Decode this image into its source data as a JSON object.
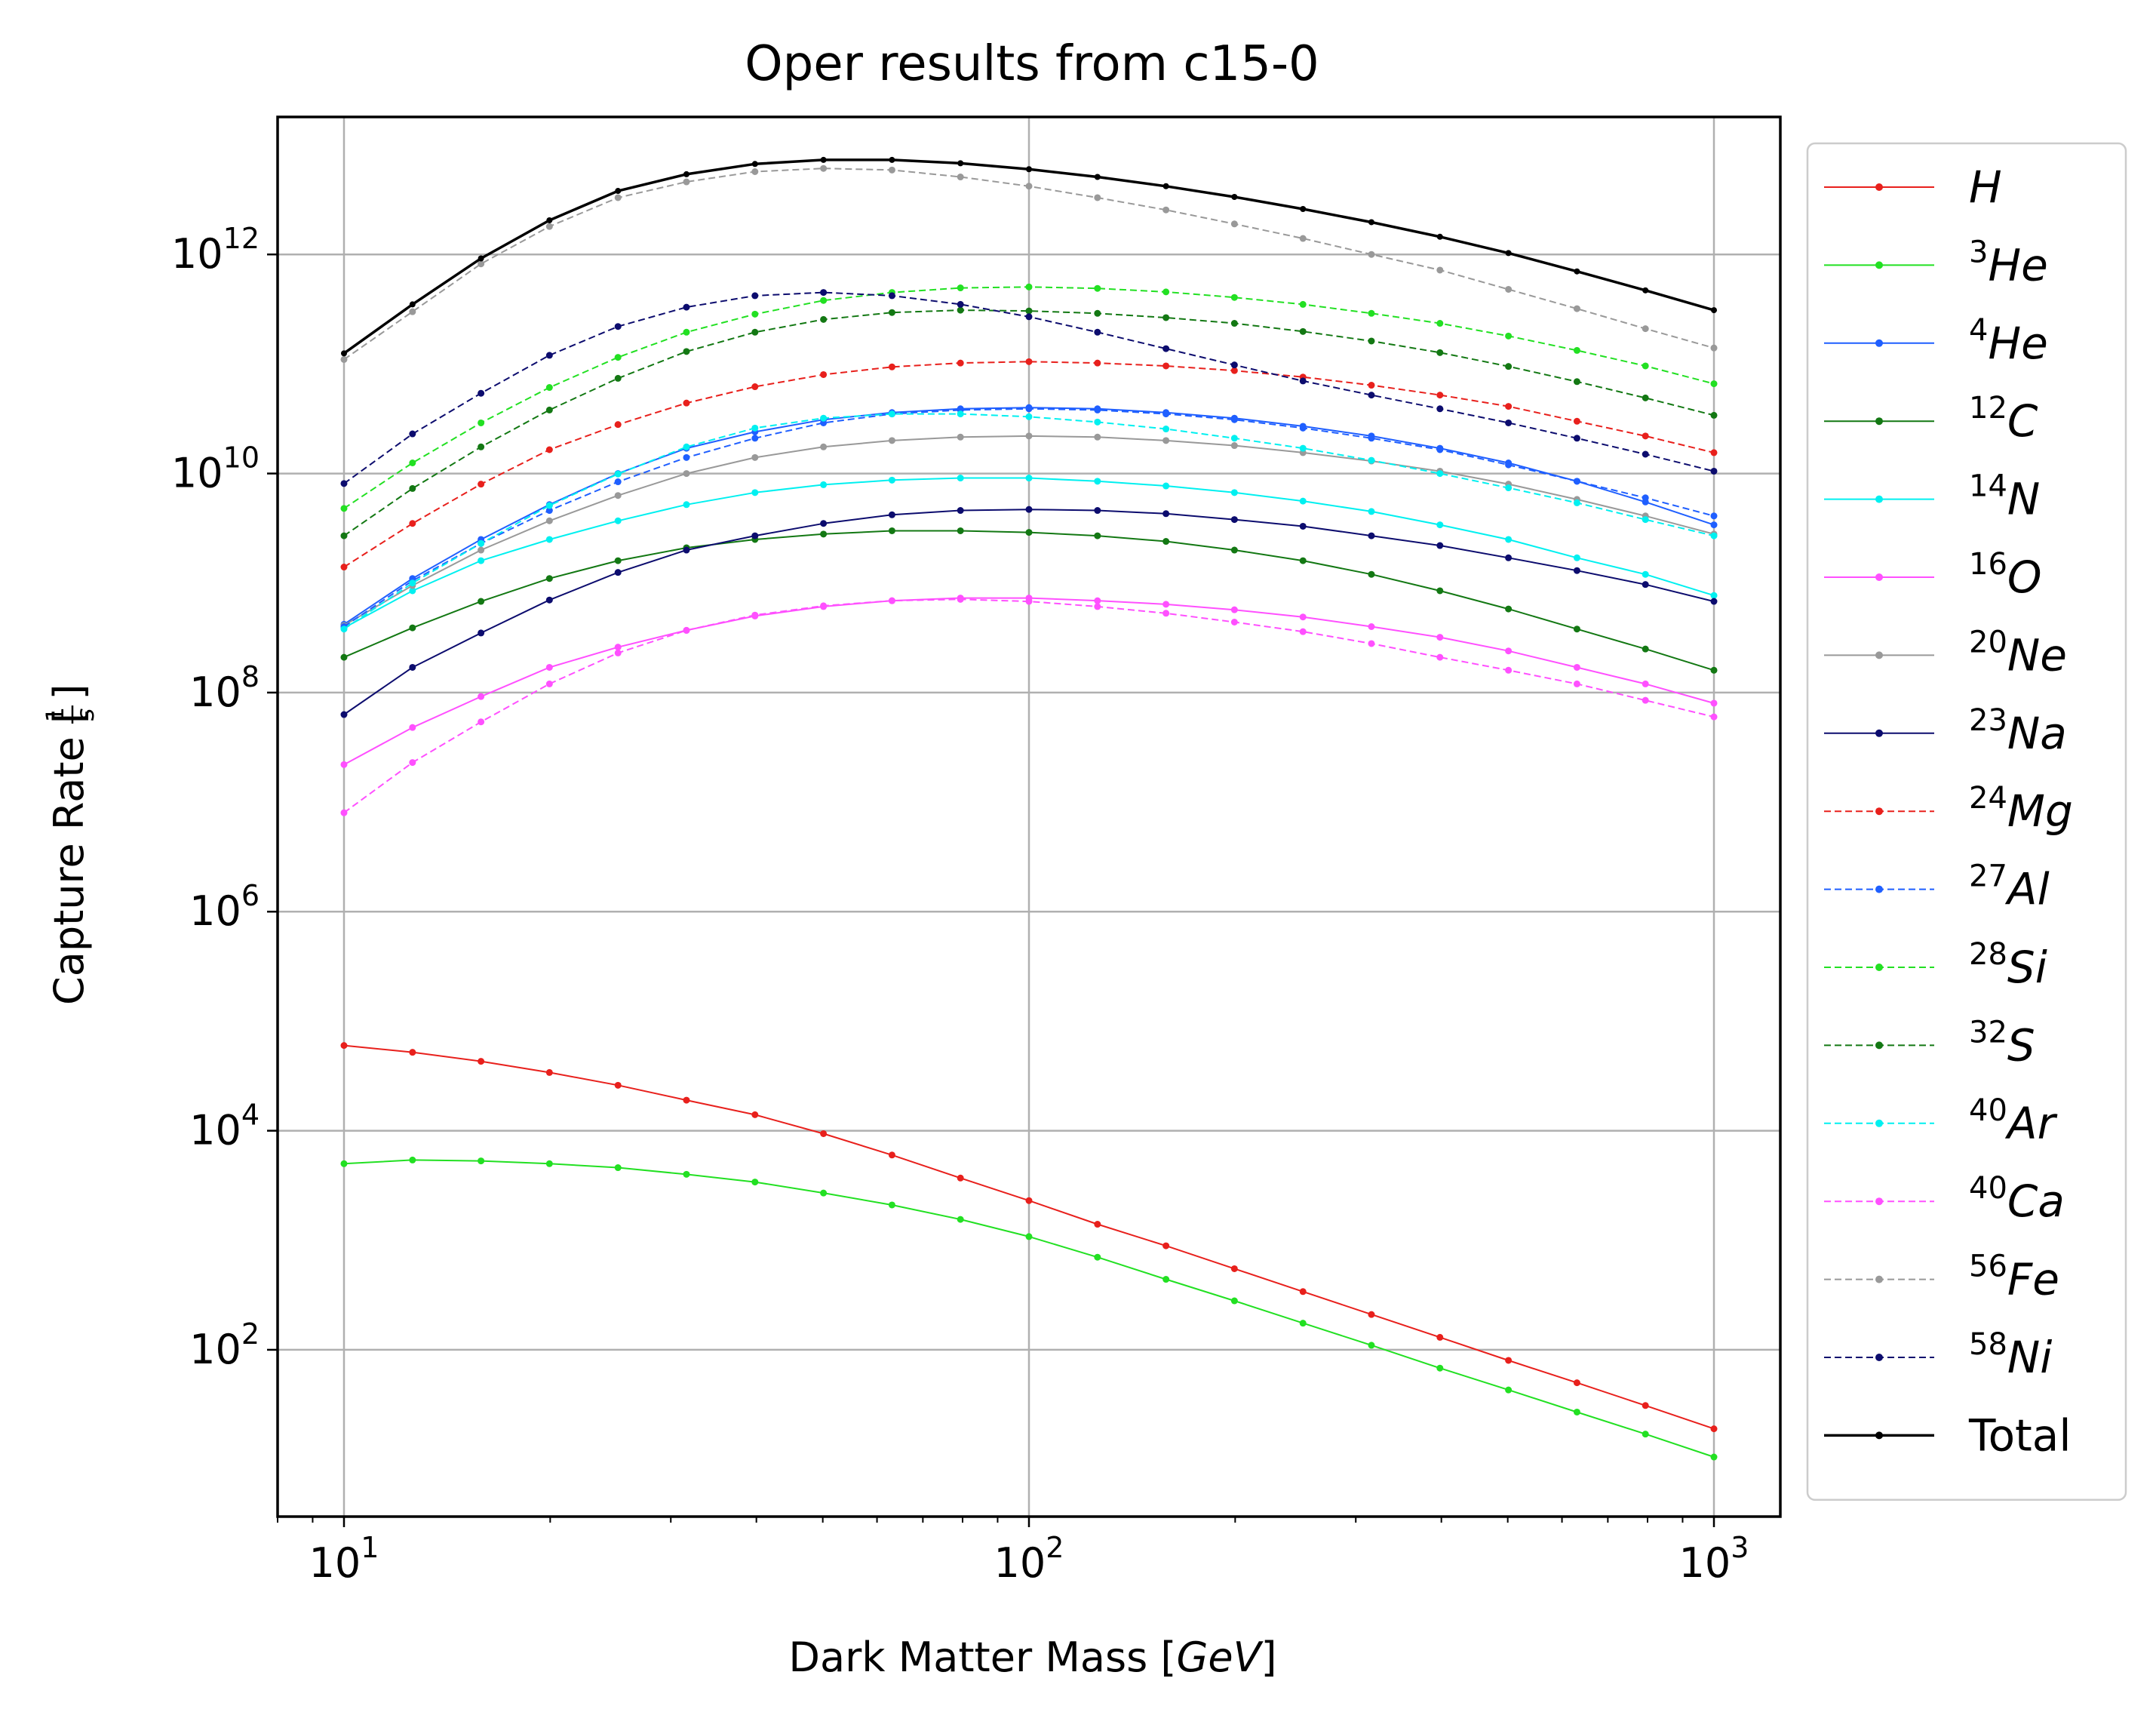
{
  "chart_data": {
    "type": "line",
    "title": "Oper results from c15-0",
    "xlabel": "Dark Matter Mass [GeV]",
    "ylabel": "Capture Rate [1/s]",
    "xscale": "log",
    "yscale": "log",
    "xlim": [
      8.0,
      1250.0
    ],
    "ylim": [
      3.0,
      18000000000000.0
    ],
    "grid": true,
    "legend_position": "right, outside plot",
    "x_ticks": [
      {
        "value": 10,
        "label": "10^1"
      },
      {
        "value": 100,
        "label": "10^2"
      },
      {
        "value": 1000,
        "label": "10^3"
      }
    ],
    "y_ticks": [
      {
        "value": 100,
        "label": "10^2"
      },
      {
        "value": 10000,
        "label": "10^4"
      },
      {
        "value": 1000000,
        "label": "10^6"
      },
      {
        "value": 100000000,
        "label": "10^8"
      },
      {
        "value": 10000000000,
        "label": "10^10"
      },
      {
        "value": 1000000000000,
        "label": "10^12"
      }
    ],
    "x": [
      10,
      12.59,
      15.85,
      19.95,
      25.12,
      31.62,
      39.81,
      50.12,
      63.1,
      79.43,
      100,
      125.9,
      158.5,
      199.5,
      251.2,
      316.2,
      398.1,
      501.2,
      631,
      794.3,
      1000
    ],
    "series": [
      {
        "name": "H",
        "iso": "",
        "el": "H",
        "color": "#e8201c",
        "style": "solid",
        "values": [
          60000,
          52000,
          43000,
          34000,
          26000,
          19000,
          14000,
          9400,
          6000,
          3700,
          2300,
          1400,
          890,
          550,
          340,
          210,
          130,
          80,
          50,
          31,
          19
        ]
      },
      {
        "name": "3He",
        "iso": "3",
        "el": "He",
        "color": "#22e022",
        "style": "solid",
        "values": [
          5000,
          5400,
          5300,
          5000,
          4600,
          4000,
          3400,
          2700,
          2100,
          1550,
          1080,
          700,
          440,
          280,
          175,
          110,
          68,
          43,
          27,
          17,
          10.5
        ]
      },
      {
        "name": "4He",
        "iso": "4",
        "el": "He",
        "color": "#1f5fff",
        "style": "solid",
        "values": [
          420000000,
          1100000000,
          2500000000,
          5200000000,
          10000000000.0,
          17000000000.0,
          24000000000.0,
          31000000000.0,
          36000000000.0,
          39000000000.0,
          40000000000.0,
          39000000000.0,
          36000000000.0,
          32000000000.0,
          27000000000.0,
          22000000000.0,
          17000000000.0,
          12500000000.0,
          8500000000.0,
          5500000000.0,
          3400000000.0
        ]
      },
      {
        "name": "12C",
        "iso": "12",
        "el": "C",
        "color": "#137813",
        "style": "solid",
        "values": [
          210000000,
          390000000,
          680000000,
          1100000000,
          1600000000,
          2100000000,
          2500000000,
          2800000000,
          3000000000,
          3000000000,
          2900000000,
          2700000000,
          2400000000,
          2000000000,
          1600000000,
          1200000000,
          850000000,
          580000000,
          380000000,
          250000000,
          160000000
        ]
      },
      {
        "name": "14N",
        "iso": "14",
        "el": "N",
        "color": "#00f0f0",
        "style": "solid",
        "values": [
          390000000,
          850000000,
          1600000000,
          2500000000,
          3700000000,
          5200000000,
          6700000000,
          7900000000,
          8700000000,
          9100000000,
          9100000000,
          8500000000,
          7700000000,
          6700000000,
          5600000000,
          4500000000,
          3400000000,
          2500000000,
          1700000000,
          1200000000,
          770000000
        ]
      },
      {
        "name": "16O",
        "iso": "16",
        "el": "O",
        "color": "#ff50ff",
        "style": "solid",
        "values": [
          22000000,
          48000000,
          92000000,
          170000000,
          260000000,
          370000000,
          500000000,
          610000000,
          690000000,
          730000000,
          730000000,
          690000000,
          640000000,
          570000000,
          490000000,
          400000000,
          320000000,
          240000000,
          170000000,
          120000000,
          80000000
        ]
      },
      {
        "name": "20Ne",
        "iso": "20",
        "el": "Ne",
        "color": "#999999",
        "style": "solid",
        "values": [
          410000000,
          950000000,
          2000000000,
          3700000000,
          6300000000,
          10000000000.0,
          14000000000.0,
          17500000000.0,
          20000000000.0,
          21500000000.0,
          22000000000.0,
          21500000000.0,
          20000000000.0,
          18000000000.0,
          15500000000.0,
          13000000000.0,
          10500000000.0,
          8000000000.0,
          5800000000.0,
          4100000000.0,
          2800000000.0
        ]
      },
      {
        "name": "23Na",
        "iso": "23",
        "el": "Na",
        "color": "#0c0c6e",
        "style": "solid",
        "values": [
          63000000,
          170000000,
          350000000,
          700000000,
          1250000000,
          2000000000,
          2700000000,
          3500000000,
          4200000000,
          4600000000,
          4700000000,
          4600000000,
          4300000000,
          3800000000,
          3300000000,
          2700000000,
          2200000000,
          1700000000,
          1300000000,
          970000000,
          680000000
        ]
      },
      {
        "name": "24Mg",
        "iso": "24",
        "el": "Mg",
        "color": "#e8201c",
        "style": "dashed",
        "values": [
          1400000000,
          3500000000,
          8000000000,
          16500000000.0,
          28000000000.0,
          44000000000.0,
          62000000000.0,
          80000000000.0,
          94000000000.0,
          102000000000.0,
          105000000000.0,
          102000000000.0,
          96000000000.0,
          87000000000.0,
          76000000000.0,
          64000000000.0,
          52000000000.0,
          41000000000.0,
          30000000000.0,
          22000000000.0,
          15500000000.0
        ]
      },
      {
        "name": "27Al",
        "iso": "27",
        "el": "Al",
        "color": "#1f5fff",
        "style": "dashed",
        "values": [
          400000000,
          1050000000,
          2300000000,
          4600000000,
          8400000000,
          14000000000.0,
          21000000000.0,
          29000000000.0,
          35000000000.0,
          38000000000.0,
          39000000000.0,
          38000000000.0,
          35000000000.0,
          31000000000.0,
          26000000000.0,
          21000000000.0,
          16500000000.0,
          12000000000.0,
          8500000000.0,
          6000000000.0,
          4100000000.0
        ]
      },
      {
        "name": "28Si",
        "iso": "28",
        "el": "Si",
        "color": "#22e022",
        "style": "dashed",
        "values": [
          4800000000,
          12500000000.0,
          29000000000.0,
          61000000000.0,
          115000000000.0,
          195000000000.0,
          285000000000.0,
          380000000000.0,
          450000000000.0,
          495000000000.0,
          505000000000.0,
          490000000000.0,
          455000000000.0,
          405000000000.0,
          350000000000.0,
          290000000000.0,
          235000000000.0,
          180000000000.0,
          133000000000.0,
          96000000000.0,
          66000000000.0
        ]
      },
      {
        "name": "32S",
        "iso": "32",
        "el": "S",
        "color": "#137813",
        "style": "dashed",
        "values": [
          2700000000,
          7300000000,
          17500000000.0,
          38000000000.0,
          74000000000.0,
          130000000000.0,
          195000000000.0,
          255000000000.0,
          295000000000.0,
          310000000000.0,
          305000000000.0,
          290000000000.0,
          265000000000.0,
          235000000000.0,
          198000000000.0,
          162000000000.0,
          127000000000.0,
          95000000000.0,
          69000000000.0,
          49000000000.0,
          34000000000.0
        ]
      },
      {
        "name": "40Ar",
        "iso": "40",
        "el": "Ar",
        "color": "#00f0f0",
        "style": "dashed",
        "values": [
          380000000,
          1000000000,
          2300000000,
          5100000000,
          9900000000,
          17500000000.0,
          26000000000.0,
          32000000000.0,
          35000000000.0,
          35000000000.0,
          33000000000.0,
          29500000000.0,
          25500000000.0,
          21000000000.0,
          17000000000.0,
          13200000000.0,
          10000000000.0,
          7400000000.0,
          5400000000.0,
          3800000000.0,
          2700000000.0
        ]
      },
      {
        "name": "40Ca",
        "iso": "40",
        "el": "Ca",
        "color": "#ff50ff",
        "style": "dashed",
        "values": [
          8000000,
          23000000,
          54000000,
          120000000,
          230000000,
          370000000,
          510000000,
          620000000,
          690000000,
          710000000,
          680000000,
          610000000,
          530000000,
          440000000,
          360000000,
          280000000,
          210000000,
          160000000,
          120000000,
          85000000,
          60000000
        ]
      },
      {
        "name": "56Fe",
        "iso": "56",
        "el": "Fe",
        "color": "#999999",
        "style": "dashed",
        "values": [
          110000000000.0,
          300000000000.0,
          820000000000.0,
          1800000000000.0,
          3300000000000.0,
          4600000000000.0,
          5700000000000.0,
          6100000000000.0,
          5900000000000.0,
          5100000000000.0,
          4200000000000.0,
          3300000000000.0,
          2550000000000.0,
          1900000000000.0,
          1400000000000.0,
          1000000000000.0,
          720000000000.0,
          480000000000.0,
          320000000000.0,
          210000000000.0,
          140000000000.0
        ]
      },
      {
        "name": "58Ni",
        "iso": "58",
        "el": "Ni",
        "color": "#0c0c6e",
        "style": "dashed",
        "values": [
          8100000000,
          23000000000.0,
          54000000000.0,
          120000000000.0,
          220000000000.0,
          330000000000.0,
          420000000000.0,
          450000000000.0,
          420000000000.0,
          350000000000.0,
          270000000000.0,
          195000000000.0,
          138000000000.0,
          98000000000.0,
          70000000000.0,
          52000000000.0,
          39000000000.0,
          29000000000.0,
          21000000000.0,
          15000000000.0,
          10500000000.0
        ]
      },
      {
        "name": "Total",
        "iso": "",
        "el": "",
        "color": "#000000",
        "style": "solid",
        "values": [
          125000000000.0,
          350000000000.0,
          920000000000.0,
          2050000000000.0,
          3800000000000.0,
          5400000000000.0,
          6700000000000.0,
          7300000000000.0,
          7300000000000.0,
          6800000000000.0,
          6000000000000.0,
          5100000000000.0,
          4200000000000.0,
          3350000000000.0,
          2600000000000.0,
          1970000000000.0,
          1450000000000.0,
          1030000000000.0,
          700000000000.0,
          470000000000.0,
          310000000000.0
        ]
      }
    ]
  }
}
